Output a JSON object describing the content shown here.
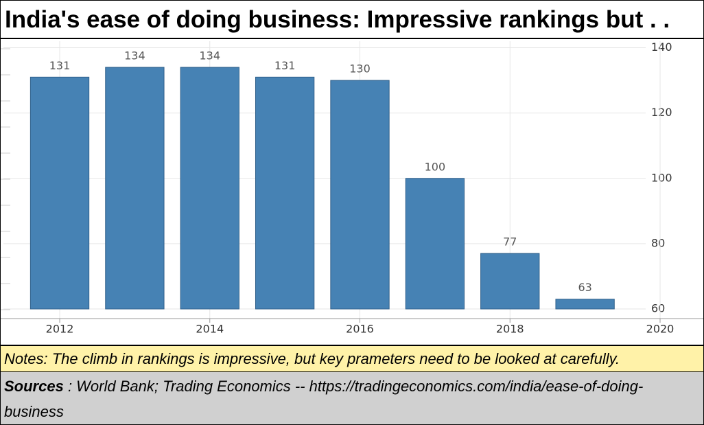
{
  "chart_data": {
    "type": "bar",
    "title": "India's ease of doing business: Impressive rankings but . .",
    "x": [
      2012,
      2013,
      2014,
      2015,
      2016,
      2017,
      2018,
      2019
    ],
    "values": [
      131,
      134,
      134,
      131,
      130,
      100,
      77,
      63
    ],
    "color": "#4682b4",
    "xlim": [
      2011.25,
      2020
    ],
    "xticks": [
      2012,
      2014,
      2016,
      2018,
      2020
    ],
    "ylim": [
      60,
      142
    ],
    "yticks": [
      60,
      80,
      100,
      120,
      140
    ],
    "grid": true
  },
  "footer": {
    "notes": "Notes: The climb in rankings is impressive, but key prameters need to be looked at carefully.",
    "source_label": "Sources",
    "source_text": " : World Bank; Trading Economics -- https://tradingeconomics.com/india/ease-of-doing-business"
  }
}
